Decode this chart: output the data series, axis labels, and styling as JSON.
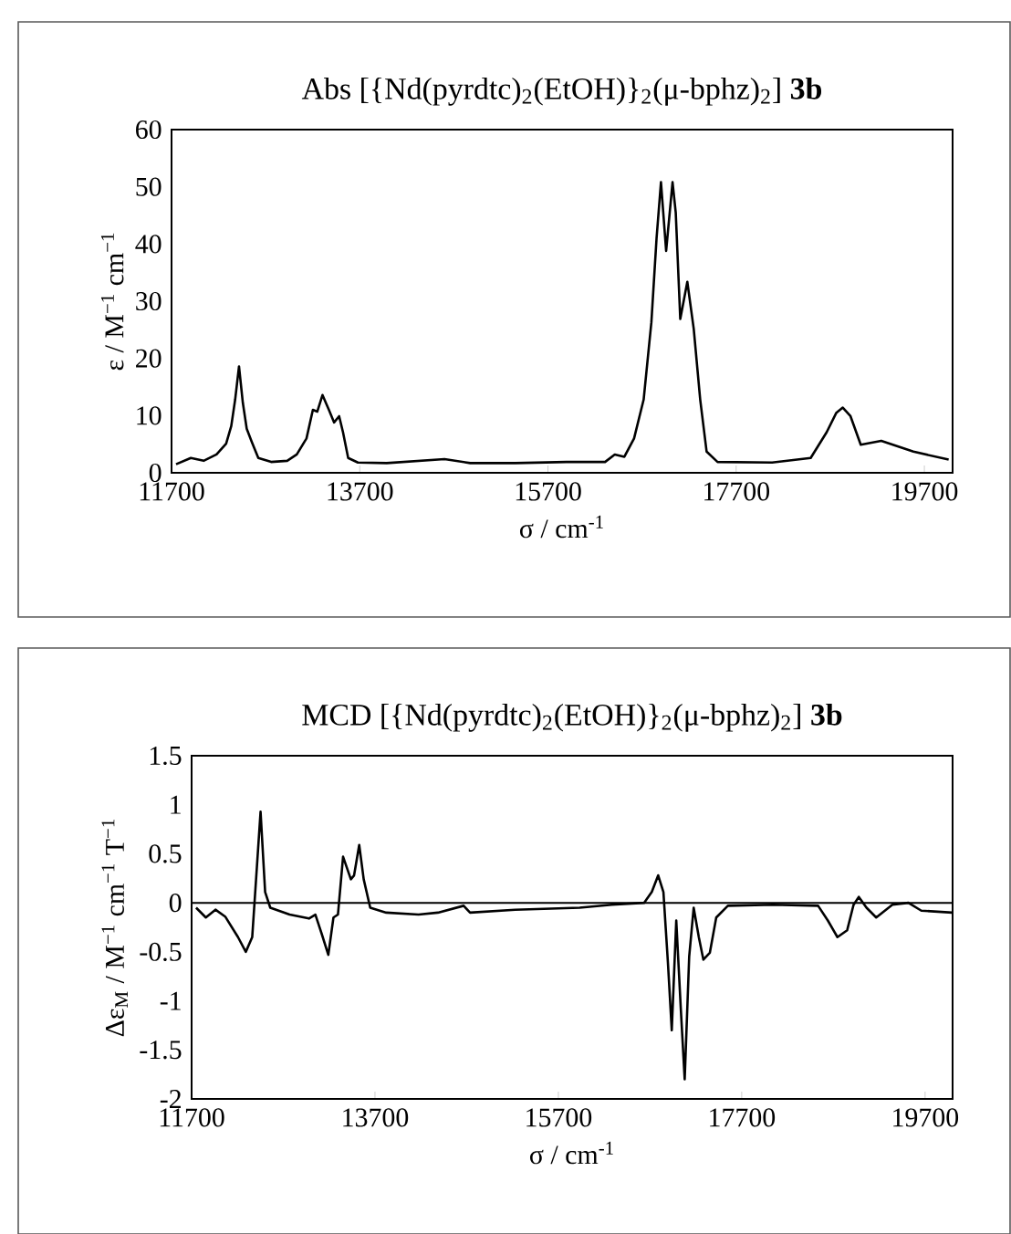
{
  "chart_data": [
    {
      "type": "line",
      "title": "Abs [{Nd(pyrdtc)$_{2}$(EtOH)}$_{2}$(μ-bphz)$_{2}$] **3b**",
      "xlabel": "σ / cm$^{-1}$",
      "ylabel": "ε / M$^{−1}$ cm$^{−1}$",
      "xlim": [
        11700,
        20000
      ],
      "xticks": [
        11700,
        13700,
        15700,
        17700,
        19700
      ],
      "ylim": [
        0,
        60
      ],
      "yticks": [
        0,
        10,
        20,
        30,
        40,
        50,
        60
      ],
      "series": [
        {
          "color": "#000000",
          "x": [
            11748,
            11905,
            12041,
            12178,
            12280,
            12335,
            12376,
            12417,
            12458,
            12499,
            12553,
            12622,
            12758,
            12929,
            13031,
            13134,
            13202,
            13249,
            13304,
            13372,
            13427,
            13481,
            13522,
            13577,
            13680,
            13987,
            14601,
            14874,
            15352,
            15898,
            16307,
            16410,
            16512,
            16615,
            16717,
            16799,
            16854,
            16901,
            16956,
            17024,
            17058,
            17106,
            17181,
            17249,
            17318,
            17386,
            17502,
            18082,
            18492,
            18662,
            18765,
            18833,
            18915,
            19024,
            19242,
            19583,
            19958
          ],
          "values": [
            1.5,
            2.6,
            2.1,
            3.2,
            5.1,
            8.2,
            12.8,
            18.6,
            12.2,
            7.7,
            5.4,
            2.6,
            1.9,
            2.1,
            3.2,
            6,
            11,
            10.7,
            13.6,
            11,
            8.8,
            9.9,
            7.1,
            2.6,
            1.8,
            1.7,
            2.4,
            1.7,
            1.7,
            1.9,
            1.9,
            3.2,
            2.8,
            6,
            12.8,
            26.3,
            41,
            50.8,
            38.8,
            50.8,
            45.5,
            26.9,
            33.4,
            25.2,
            12.8,
            3.7,
            1.9,
            1.8,
            2.6,
            7.1,
            10.5,
            11.4,
            9.9,
            4.9,
            5.6,
            3.7,
            2.3
          ]
        }
      ]
    },
    {
      "type": "line",
      "title": "MCD [{Nd(pyrdtc)$_{2}$(EtOH)}$_{2}$(μ-bphz)$_{2}$] **3b**",
      "xlabel": "σ / cm$^{-1}$",
      "ylabel": "Δε$_{M}$ / M$^{−1}$ cm$^{−1}$ T$^{−1}$",
      "xlim": [
        11700,
        20000
      ],
      "xticks": [
        11700,
        13700,
        15700,
        17700,
        19700
      ],
      "ylim": [
        -2,
        1.5
      ],
      "yticks": [
        -2,
        -1.5,
        -1,
        -0.5,
        0,
        0.5,
        1,
        1.5
      ],
      "ref_lines": [
        {
          "axis": "y",
          "value": 0,
          "color": "#000000"
        }
      ],
      "series": [
        {
          "color": "#000000",
          "x": [
            11749,
            11855,
            11960,
            12066,
            12206,
            12291,
            12361,
            12403,
            12452,
            12502,
            12558,
            12769,
            12980,
            13050,
            13120,
            13191,
            13247,
            13296,
            13352,
            13437,
            13472,
            13528,
            13577,
            13648,
            13823,
            14175,
            14386,
            14667,
            14737,
            15229,
            15932,
            16283,
            16635,
            16719,
            16789,
            16846,
            16895,
            16937,
            16986,
            17035,
            17078,
            17127,
            17176,
            17232,
            17282,
            17352,
            17422,
            17549,
            18041,
            18533,
            18639,
            18744,
            18850,
            18920,
            18977,
            19061,
            19167,
            19343,
            19518,
            19659,
            19995
          ],
          "values": [
            -0.05,
            -0.15,
            -0.07,
            -0.14,
            -0.35,
            -0.5,
            -0.35,
            0.24,
            0.93,
            0.11,
            -0.05,
            -0.12,
            -0.16,
            -0.12,
            -0.32,
            -0.53,
            -0.15,
            -0.12,
            0.47,
            0.24,
            0.28,
            0.59,
            0.24,
            -0.05,
            -0.1,
            -0.12,
            -0.1,
            -0.03,
            -0.1,
            -0.07,
            -0.05,
            -0.02,
            0,
            0.11,
            0.28,
            0.11,
            -0.61,
            -1.3,
            -0.18,
            -1.07,
            -1.8,
            -0.55,
            -0.05,
            -0.35,
            -0.58,
            -0.51,
            -0.15,
            -0.03,
            -0.02,
            -0.03,
            -0.18,
            -0.35,
            -0.28,
            -0.02,
            0.06,
            -0.05,
            -0.15,
            -0.02,
            0,
            -0.08,
            -0.1
          ]
        }
      ]
    }
  ]
}
